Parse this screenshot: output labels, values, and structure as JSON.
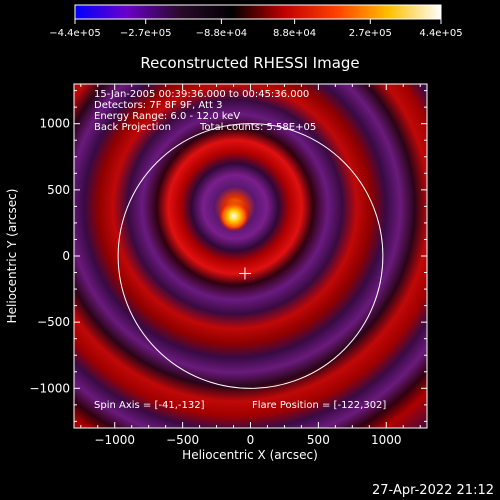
{
  "chart_data": {
    "type": "heatmap",
    "title": "Reconstructed RHESSI Image",
    "xlabel": "Heliocentric X (arcsec)",
    "ylabel": "Heliocentric Y (arcsec)",
    "xlim": [
      -1300,
      1300
    ],
    "ylim": [
      -1300,
      1300
    ],
    "xticks": [
      -1000,
      -500,
      0,
      500,
      1000
    ],
    "xtick_labels": [
      "−1000",
      "−500",
      "0",
      "500",
      "1000"
    ],
    "yticks": [
      -1000,
      -500,
      0,
      500,
      1000
    ],
    "ytick_labels": [
      "−1000",
      "−500",
      "0",
      "500",
      "1000"
    ],
    "colorbar": {
      "min": -440000,
      "max": 440000,
      "ticks": [
        -440000,
        -270000,
        -88000,
        88000,
        270000,
        440000
      ],
      "tick_labels": [
        "−4.4e+05",
        "−2.7e+05",
        "−8.8e+04",
        "8.8e+04",
        "2.7e+05",
        "4.4e+05"
      ],
      "colors": [
        "#0000ff",
        "#6a00c8",
        "#2a0a2a",
        "#000000",
        "#c00000",
        "#ff4000",
        "#ffc000",
        "#ffffff"
      ]
    },
    "annotations": {
      "time_range": "15-Jan-2005 00:39:36.000 to 00:45:36.000",
      "detectors": "Detectors: 7F 8F 9F, Att 3",
      "energy": "Energy Range: 6.0 - 12.0 keV",
      "method": "Back Projection",
      "counts": "Total counts: 5.58E+05",
      "spin_axis": "Spin Axis = [-41,-132]",
      "flare_position": "Flare Position = [-122,302]"
    },
    "flare_position": [
      -122,
      302
    ],
    "spin_axis": [
      -41,
      -132
    ],
    "solar_limb_radius": 975,
    "timestamp": "27-Apr-2022 21:12"
  }
}
